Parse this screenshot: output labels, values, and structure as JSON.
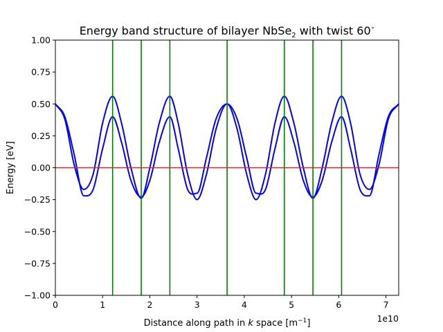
{
  "chart_data": {
    "type": "line",
    "title_main": "Energy band structure of bilayer NbSe",
    "title_sub": "2",
    "title_rest": " with twist 60",
    "title_deg": "∘",
    "xlabel_pre": "Distance along path in ",
    "xlabel_var": "k",
    "xlabel_post": " space [m",
    "xlabel_exp": "−1",
    "xlabel_close": "]",
    "ylabel": "Energy [eV]",
    "x_offset_label": "1e10",
    "xlim": [
      0,
      7.27
    ],
    "ylim": [
      -1.0,
      1.0
    ],
    "x_ticks": [
      0,
      1,
      2,
      3,
      4,
      5,
      6,
      7
    ],
    "x_tick_labels": [
      "0",
      "1",
      "2",
      "3",
      "4",
      "5",
      "6",
      "7"
    ],
    "y_ticks": [
      1.0,
      0.75,
      0.5,
      0.25,
      0.0,
      -0.25,
      -0.5,
      -0.75,
      -1.0
    ],
    "y_tick_labels": [
      "1.00",
      "0.75",
      "0.50",
      "0.25",
      "0.00",
      "−0.25",
      "−0.50",
      "−0.75",
      "−1.00"
    ],
    "vertical_lines_x": [
      1.212,
      1.818,
      2.424,
      3.636,
      4.848,
      5.454,
      6.06
    ],
    "fermi_level": 0.0,
    "colors": {
      "bands": "#0000ff",
      "vlines": "#008000",
      "fermi": "#d62728"
    },
    "series": [
      {
        "x": [
          0,
          0.2,
          0.4,
          0.6,
          0.8,
          1.0,
          1.212,
          1.4,
          1.6,
          1.818,
          2.0,
          2.2,
          2.424,
          2.6,
          2.8,
          3.0,
          3.2,
          3.4,
          3.636,
          3.85,
          4.05,
          4.25,
          4.45,
          4.65,
          4.848,
          5.05,
          5.25,
          5.454,
          5.65,
          5.85,
          6.06,
          6.25,
          6.45,
          6.65,
          6.85,
          7.05,
          7.27
        ],
        "values": [
          0.5,
          0.4,
          0.1,
          -0.22,
          -0.17,
          0.15,
          0.4,
          0.2,
          -0.1,
          -0.23,
          -0.1,
          0.2,
          0.4,
          0.15,
          -0.17,
          -0.2,
          0.08,
          0.38,
          0.5,
          0.38,
          0.08,
          -0.2,
          -0.17,
          0.15,
          0.4,
          0.2,
          -0.1,
          -0.23,
          -0.1,
          0.2,
          0.4,
          0.15,
          -0.17,
          -0.22,
          0.1,
          0.4,
          0.5
        ]
      },
      {
        "x": [
          0,
          0.2,
          0.4,
          0.6,
          0.8,
          1.0,
          1.212,
          1.4,
          1.6,
          1.818,
          2.0,
          2.2,
          2.424,
          2.6,
          2.8,
          3.0,
          3.2,
          3.4,
          3.636,
          3.85,
          4.05,
          4.25,
          4.45,
          4.65,
          4.848,
          5.05,
          5.25,
          5.454,
          5.65,
          5.85,
          6.06,
          6.25,
          6.45,
          6.65,
          6.85,
          7.05,
          7.27
        ],
        "values": [
          0.5,
          0.38,
          0.02,
          -0.17,
          -0.05,
          0.35,
          0.56,
          0.35,
          0.0,
          -0.24,
          0.0,
          0.35,
          0.56,
          0.35,
          -0.05,
          -0.25,
          -0.05,
          0.3,
          0.5,
          0.3,
          -0.05,
          -0.25,
          -0.05,
          0.35,
          0.56,
          0.35,
          0.0,
          -0.24,
          0.0,
          0.35,
          0.56,
          0.35,
          -0.05,
          -0.17,
          0.02,
          0.38,
          0.5
        ]
      }
    ]
  }
}
